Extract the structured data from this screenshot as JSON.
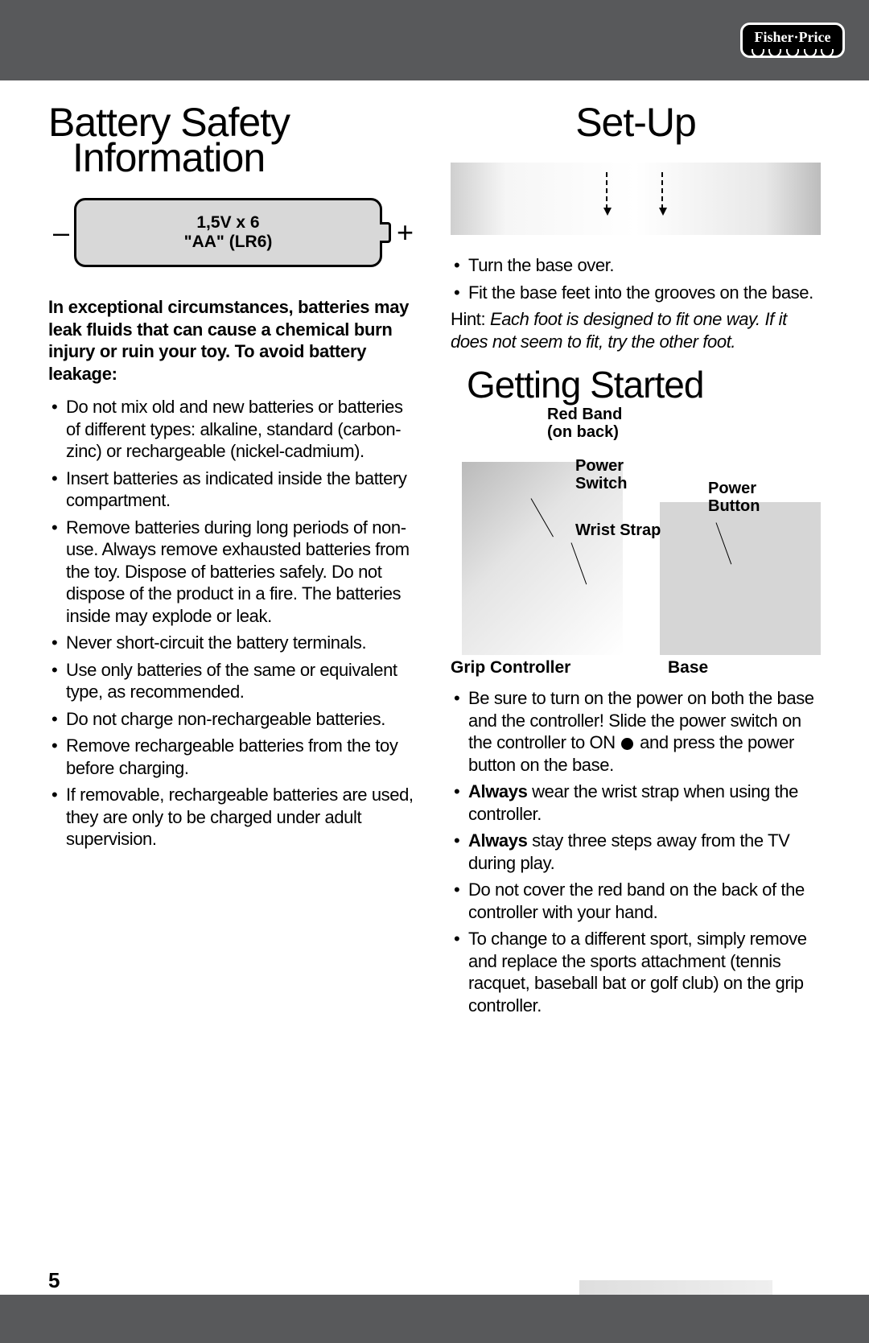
{
  "header": {
    "logo_text": "Fisher·Price"
  },
  "left": {
    "title_line1": "Battery Safety",
    "title_line2": "Information",
    "battery": {
      "minus": "–",
      "plus": "+",
      "line1": "1,5V x 6",
      "line2": "\"AA\" (LR6)"
    },
    "intro": "In exceptional circumstances, batteries may leak fluids that can cause a chemical burn injury or ruin your toy. To avoid battery leakage:",
    "bullets": [
      "Do not mix old and new batteries or batteries of different types: alkaline, standard (carbon-zinc) or rechargeable (nickel-cadmium).",
      "Insert batteries as indicated inside the battery compartment.",
      "Remove batteries during long periods of non-use. Always remove exhausted batteries from the toy. Dispose of batteries safely. Do not dispose of the product in a fire. The batteries inside may explode or leak.",
      "Never short-circuit the battery terminals.",
      "Use only batteries of the same or equivalent type, as recommended.",
      "Do not charge non-rechargeable batteries.",
      "Remove rechargeable batteries from the toy before charging.",
      "If removable, rechargeable batteries are used, they are only to be charged under adult supervision."
    ]
  },
  "right": {
    "setup_title": "Set-Up",
    "setup_bullets": [
      "Turn the base over.",
      "Fit the base feet into the grooves on the base."
    ],
    "hint_label": "Hint: ",
    "hint_text": "Each foot is designed to fit one way. If it does not seem to fit, try the other foot.",
    "getting_title": "Getting Started",
    "diagram": {
      "red_band": "Red Band\n(on back)",
      "power_switch": "Power\nSwitch",
      "wrist_strap": "Wrist Strap",
      "power_button": "Power\nButton",
      "grip": "Grip Controller",
      "base": "Base"
    },
    "gs_bullets": [
      {
        "pre": "Be sure to turn on the power on both the base and the controller! Slide the power switch on the controller to ON ",
        "dot": true,
        "post": " and press the power button on the base."
      },
      {
        "strong": "Always",
        "post": " wear the wrist strap when using the controller."
      },
      {
        "strong": "Always",
        "post": " stay three steps away from the TV during play."
      },
      {
        "pre": "Do not cover the red band on the back of the controller with your hand."
      },
      {
        "pre": "To change to a different sport, simply remove and replace the sports attachment (tennis racquet, baseball bat or golf club) on the grip controller."
      }
    ]
  },
  "footer": {
    "page": "5"
  },
  "colors": {
    "bar": "#58595b",
    "battery_fill": "#d8d8d8"
  }
}
